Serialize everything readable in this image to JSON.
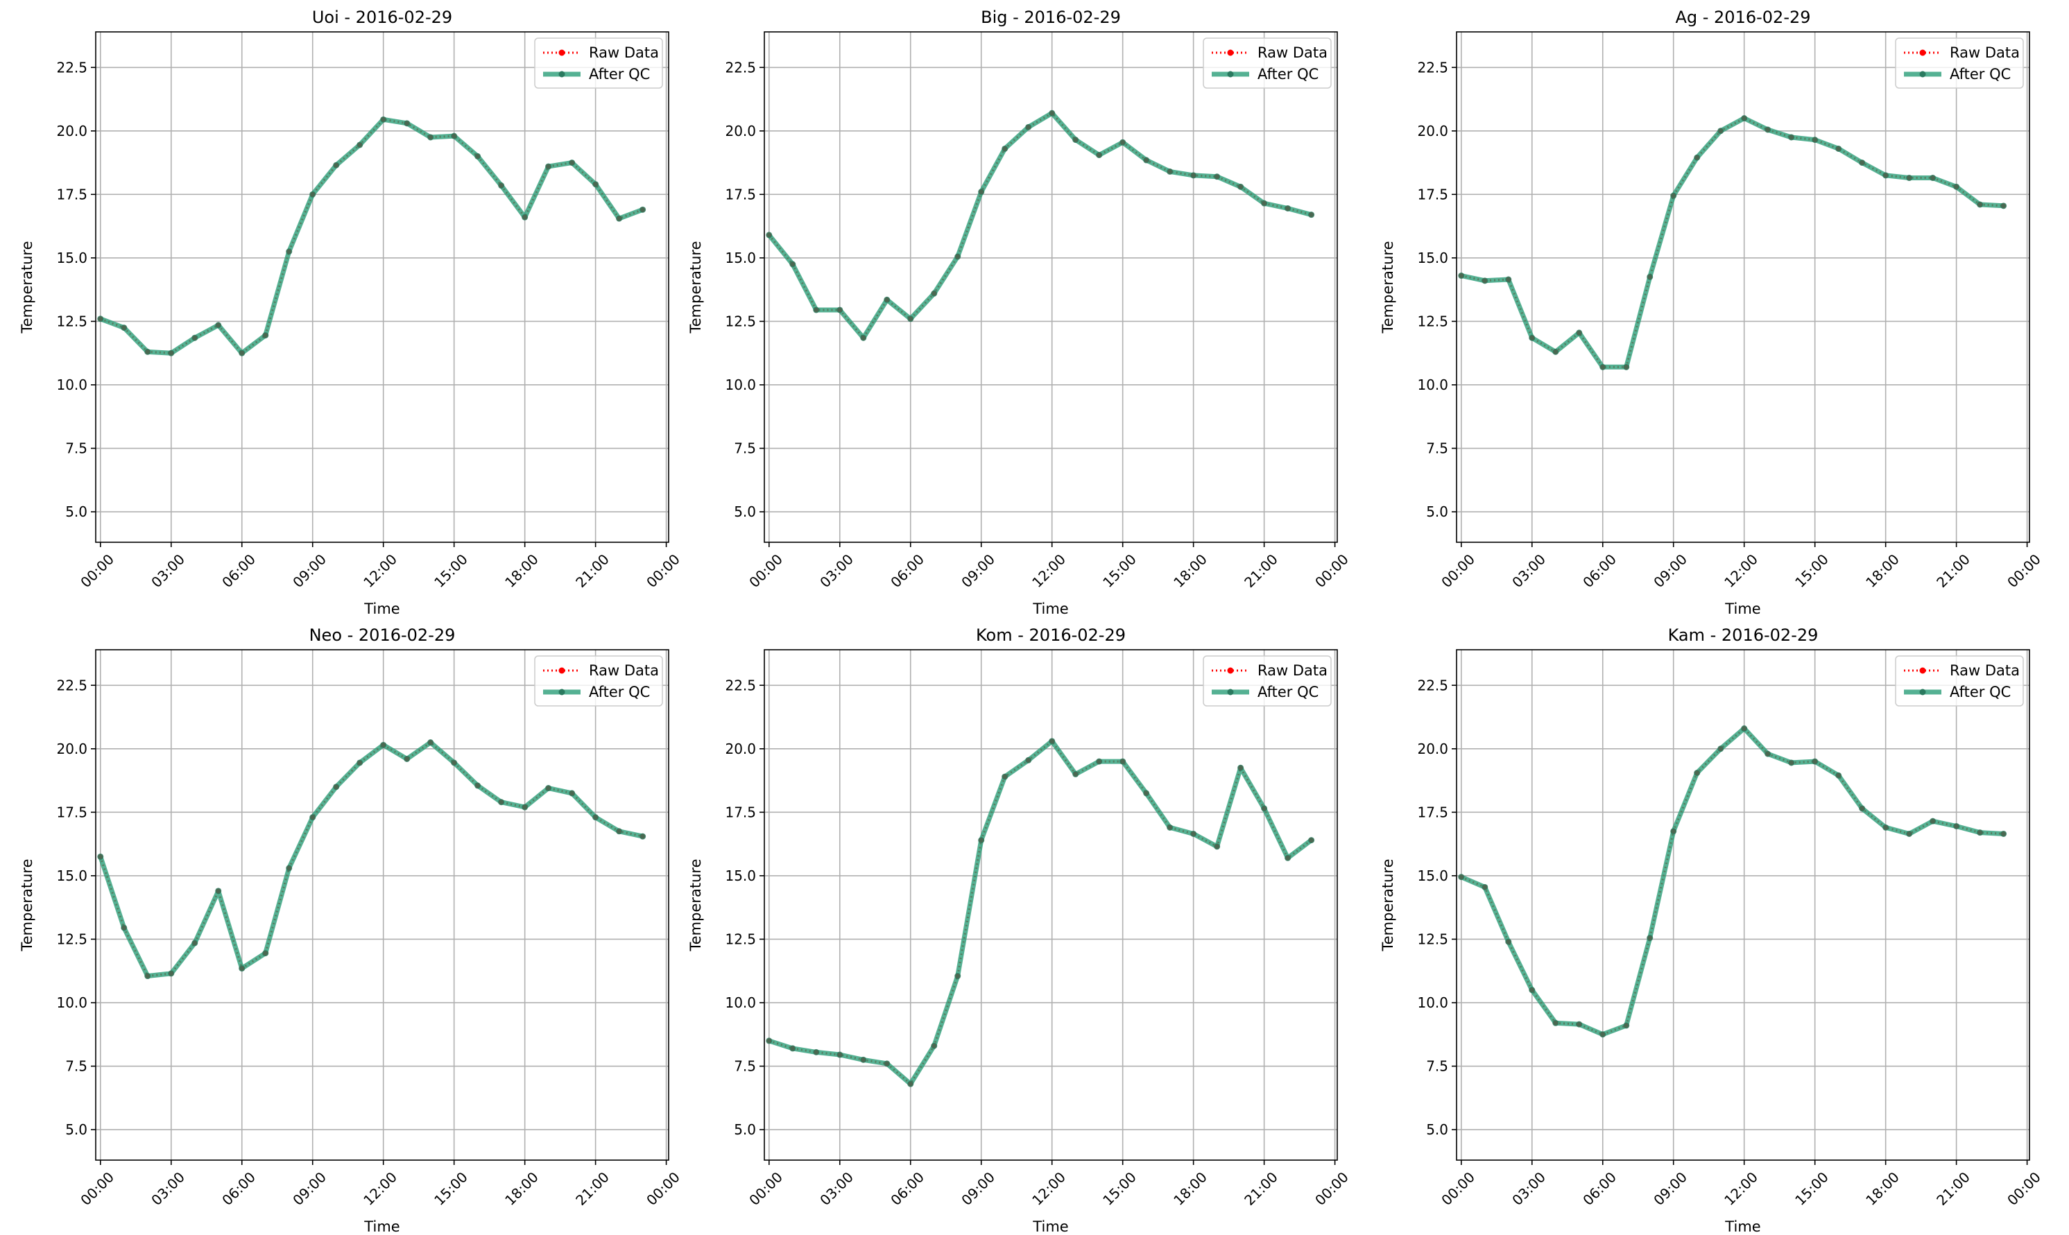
{
  "chart_data": [
    {
      "type": "line",
      "title": "Uoi - 2016-02-29",
      "xlabel": "Time",
      "ylabel": "Temperature",
      "ylim": [
        3.8,
        23.9
      ],
      "yticks": [
        5.0,
        7.5,
        10.0,
        12.5,
        15.0,
        17.5,
        20.0,
        22.5
      ],
      "ytick_labels": [
        "5.0",
        "7.5",
        "10.0",
        "12.5",
        "15.0",
        "17.5",
        "20.0",
        "22.5"
      ],
      "xlim": [
        -0.2,
        24.1
      ],
      "xticks": [
        0,
        3,
        6,
        9,
        12,
        15,
        18,
        21,
        24
      ],
      "xtick_labels": [
        "00:00",
        "03:00",
        "06:00",
        "09:00",
        "12:00",
        "15:00",
        "18:00",
        "21:00",
        "00:00"
      ],
      "grid": true,
      "legend_position": "upper right",
      "x": [
        0,
        1,
        2,
        3,
        4,
        5,
        6,
        7,
        8,
        9,
        10,
        11,
        12,
        13,
        14,
        15,
        16,
        17,
        18,
        19,
        20,
        21,
        22,
        23
      ],
      "series": [
        {
          "name": "Raw Data",
          "style": "dotted",
          "color": "#ff0000",
          "values": [
            12.6,
            12.25,
            11.3,
            11.25,
            11.85,
            12.35,
            11.25,
            11.95,
            15.25,
            17.5,
            18.65,
            19.45,
            20.45,
            20.3,
            19.75,
            19.8,
            19.0,
            17.85,
            16.6,
            18.6,
            18.75,
            17.9,
            16.55,
            16.9
          ]
        },
        {
          "name": "After QC",
          "style": "solid",
          "color": "#2a9d78",
          "values": [
            12.6,
            12.25,
            11.3,
            11.25,
            11.85,
            12.35,
            11.25,
            11.95,
            15.25,
            17.5,
            18.65,
            19.45,
            20.45,
            20.3,
            19.75,
            19.8,
            19.0,
            17.85,
            16.6,
            18.6,
            18.75,
            17.9,
            16.55,
            16.9
          ]
        }
      ]
    },
    {
      "type": "line",
      "title": "Big - 2016-02-29",
      "xlabel": "Time",
      "ylabel": "Temperature",
      "ylim": [
        3.8,
        23.9
      ],
      "yticks": [
        5.0,
        7.5,
        10.0,
        12.5,
        15.0,
        17.5,
        20.0,
        22.5
      ],
      "ytick_labels": [
        "5.0",
        "7.5",
        "10.0",
        "12.5",
        "15.0",
        "17.5",
        "20.0",
        "22.5"
      ],
      "xlim": [
        -0.2,
        24.1
      ],
      "xticks": [
        0,
        3,
        6,
        9,
        12,
        15,
        18,
        21,
        24
      ],
      "xtick_labels": [
        "00:00",
        "03:00",
        "06:00",
        "09:00",
        "12:00",
        "15:00",
        "18:00",
        "21:00",
        "00:00"
      ],
      "grid": true,
      "legend_position": "upper right",
      "x": [
        0,
        1,
        2,
        3,
        4,
        5,
        6,
        7,
        8,
        9,
        10,
        11,
        12,
        13,
        14,
        15,
        16,
        17,
        18,
        19,
        20,
        21,
        22,
        23
      ],
      "series": [
        {
          "name": "Raw Data",
          "style": "dotted",
          "color": "#ff0000",
          "values": [
            15.9,
            14.75,
            12.95,
            12.95,
            11.85,
            13.35,
            12.6,
            13.6,
            15.05,
            17.6,
            19.3,
            20.15,
            20.7,
            19.65,
            19.05,
            19.55,
            18.85,
            18.4,
            18.25,
            18.2,
            17.8,
            17.15,
            16.95,
            16.7
          ]
        },
        {
          "name": "After QC",
          "style": "solid",
          "color": "#2a9d78",
          "values": [
            15.9,
            14.75,
            12.95,
            12.95,
            11.85,
            13.35,
            12.6,
            13.6,
            15.05,
            17.6,
            19.3,
            20.15,
            20.7,
            19.65,
            19.05,
            19.55,
            18.85,
            18.4,
            18.25,
            18.2,
            17.8,
            17.15,
            16.95,
            16.7
          ]
        }
      ]
    },
    {
      "type": "line",
      "title": "Ag - 2016-02-29",
      "xlabel": "Time",
      "ylabel": "Temperature",
      "ylim": [
        3.8,
        23.9
      ],
      "yticks": [
        5.0,
        7.5,
        10.0,
        12.5,
        15.0,
        17.5,
        20.0,
        22.5
      ],
      "ytick_labels": [
        "5.0",
        "7.5",
        "10.0",
        "12.5",
        "15.0",
        "17.5",
        "20.0",
        "22.5"
      ],
      "xlim": [
        -0.2,
        24.1
      ],
      "xticks": [
        0,
        3,
        6,
        9,
        12,
        15,
        18,
        21,
        24
      ],
      "xtick_labels": [
        "00:00",
        "03:00",
        "06:00",
        "09:00",
        "12:00",
        "15:00",
        "18:00",
        "21:00",
        "00:00"
      ],
      "grid": true,
      "legend_position": "upper right",
      "x": [
        0,
        1,
        2,
        3,
        4,
        5,
        6,
        7,
        8,
        9,
        10,
        11,
        12,
        13,
        14,
        15,
        16,
        17,
        18,
        19,
        20,
        21,
        22,
        23
      ],
      "series": [
        {
          "name": "Raw Data",
          "style": "dotted",
          "color": "#ff0000",
          "values": [
            14.3,
            14.1,
            14.15,
            11.85,
            11.3,
            12.05,
            10.7,
            10.7,
            14.25,
            17.45,
            18.95,
            20.0,
            20.5,
            20.05,
            19.75,
            19.65,
            19.3,
            18.75,
            18.25,
            18.15,
            18.15,
            17.8,
            17.1,
            17.05
          ]
        },
        {
          "name": "After QC",
          "style": "solid",
          "color": "#2a9d78",
          "values": [
            14.3,
            14.1,
            14.15,
            11.85,
            11.3,
            12.05,
            10.7,
            10.7,
            14.25,
            17.45,
            18.95,
            20.0,
            20.5,
            20.05,
            19.75,
            19.65,
            19.3,
            18.75,
            18.25,
            18.15,
            18.15,
            17.8,
            17.1,
            17.05
          ]
        }
      ]
    },
    {
      "type": "line",
      "title": "Neo - 2016-02-29",
      "xlabel": "Time",
      "ylabel": "Temperature",
      "ylim": [
        3.8,
        23.9
      ],
      "yticks": [
        5.0,
        7.5,
        10.0,
        12.5,
        15.0,
        17.5,
        20.0,
        22.5
      ],
      "ytick_labels": [
        "5.0",
        "7.5",
        "10.0",
        "12.5",
        "15.0",
        "17.5",
        "20.0",
        "22.5"
      ],
      "xlim": [
        -0.2,
        24.1
      ],
      "xticks": [
        0,
        3,
        6,
        9,
        12,
        15,
        18,
        21,
        24
      ],
      "xtick_labels": [
        "00:00",
        "03:00",
        "06:00",
        "09:00",
        "12:00",
        "15:00",
        "18:00",
        "21:00",
        "00:00"
      ],
      "grid": true,
      "legend_position": "upper right",
      "x": [
        0,
        1,
        2,
        3,
        4,
        5,
        6,
        7,
        8,
        9,
        10,
        11,
        12,
        13,
        14,
        15,
        16,
        17,
        18,
        19,
        20,
        21,
        22,
        23
      ],
      "series": [
        {
          "name": "Raw Data",
          "style": "dotted",
          "color": "#ff0000",
          "values": [
            15.75,
            12.95,
            11.05,
            11.15,
            12.35,
            14.4,
            11.35,
            11.95,
            15.3,
            17.3,
            18.5,
            19.45,
            20.15,
            19.6,
            20.25,
            19.45,
            18.55,
            17.9,
            17.7,
            18.45,
            18.25,
            17.3,
            16.75,
            16.55
          ]
        },
        {
          "name": "After QC",
          "style": "solid",
          "color": "#2a9d78",
          "values": [
            15.75,
            12.95,
            11.05,
            11.15,
            12.35,
            14.4,
            11.35,
            11.95,
            15.3,
            17.3,
            18.5,
            19.45,
            20.15,
            19.6,
            20.25,
            19.45,
            18.55,
            17.9,
            17.7,
            18.45,
            18.25,
            17.3,
            16.75,
            16.55
          ]
        }
      ]
    },
    {
      "type": "line",
      "title": "Kom - 2016-02-29",
      "xlabel": "Time",
      "ylabel": "Temperature",
      "ylim": [
        3.8,
        23.9
      ],
      "yticks": [
        5.0,
        7.5,
        10.0,
        12.5,
        15.0,
        17.5,
        20.0,
        22.5
      ],
      "ytick_labels": [
        "5.0",
        "7.5",
        "10.0",
        "12.5",
        "15.0",
        "17.5",
        "20.0",
        "22.5"
      ],
      "xlim": [
        -0.2,
        24.1
      ],
      "xticks": [
        0,
        3,
        6,
        9,
        12,
        15,
        18,
        21,
        24
      ],
      "xtick_labels": [
        "00:00",
        "03:00",
        "06:00",
        "09:00",
        "12:00",
        "15:00",
        "18:00",
        "21:00",
        "00:00"
      ],
      "grid": true,
      "legend_position": "upper right",
      "x": [
        0,
        1,
        2,
        3,
        4,
        5,
        6,
        7,
        8,
        9,
        10,
        11,
        12,
        13,
        14,
        15,
        16,
        17,
        18,
        19,
        20,
        21,
        22,
        23
      ],
      "series": [
        {
          "name": "Raw Data",
          "style": "dotted",
          "color": "#ff0000",
          "values": [
            8.5,
            8.2,
            8.05,
            7.95,
            7.75,
            7.6,
            6.8,
            8.3,
            11.05,
            16.4,
            18.9,
            19.55,
            20.3,
            19.0,
            19.5,
            19.5,
            18.25,
            16.9,
            16.65,
            16.15,
            19.25,
            17.65,
            15.7,
            16.4
          ]
        },
        {
          "name": "After QC",
          "style": "solid",
          "color": "#2a9d78",
          "values": [
            8.5,
            8.2,
            8.05,
            7.95,
            7.75,
            7.6,
            6.8,
            8.3,
            11.05,
            16.4,
            18.9,
            19.55,
            20.3,
            19.0,
            19.5,
            19.5,
            18.25,
            16.9,
            16.65,
            16.15,
            19.25,
            17.65,
            15.7,
            16.4
          ]
        }
      ]
    },
    {
      "type": "line",
      "title": "Kam - 2016-02-29",
      "xlabel": "Time",
      "ylabel": "Temperature",
      "ylim": [
        3.8,
        23.9
      ],
      "yticks": [
        5.0,
        7.5,
        10.0,
        12.5,
        15.0,
        17.5,
        20.0,
        22.5
      ],
      "ytick_labels": [
        "5.0",
        "7.5",
        "10.0",
        "12.5",
        "15.0",
        "17.5",
        "20.0",
        "22.5"
      ],
      "xlim": [
        -0.2,
        24.1
      ],
      "xticks": [
        0,
        3,
        6,
        9,
        12,
        15,
        18,
        21,
        24
      ],
      "xtick_labels": [
        "00:00",
        "03:00",
        "06:00",
        "09:00",
        "12:00",
        "15:00",
        "18:00",
        "21:00",
        "00:00"
      ],
      "grid": true,
      "legend_position": "upper right",
      "x": [
        0,
        1,
        2,
        3,
        4,
        5,
        6,
        7,
        8,
        9,
        10,
        11,
        12,
        13,
        14,
        15,
        16,
        17,
        18,
        19,
        20,
        21,
        22,
        23
      ],
      "series": [
        {
          "name": "Raw Data",
          "style": "dotted",
          "color": "#ff0000",
          "values": [
            14.95,
            14.55,
            12.4,
            10.5,
            9.2,
            9.15,
            8.75,
            9.1,
            12.55,
            16.75,
            19.05,
            20.0,
            20.8,
            19.8,
            19.45,
            19.5,
            18.95,
            17.65,
            16.9,
            16.65,
            17.15,
            16.95,
            16.7,
            16.65
          ]
        },
        {
          "name": "After QC",
          "style": "solid",
          "color": "#2a9d78",
          "values": [
            14.95,
            14.55,
            12.4,
            10.5,
            9.2,
            9.15,
            8.75,
            9.1,
            12.55,
            16.75,
            19.05,
            20.0,
            20.8,
            19.8,
            19.45,
            19.5,
            18.95,
            17.65,
            16.9,
            16.65,
            17.15,
            16.95,
            16.7,
            16.65
          ]
        }
      ]
    }
  ]
}
